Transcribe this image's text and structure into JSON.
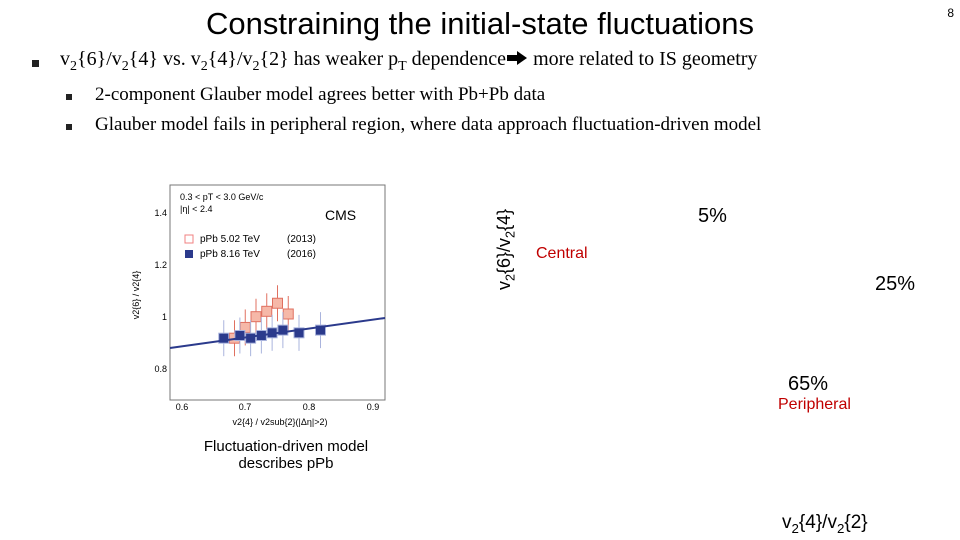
{
  "slide": {
    "title": "Constraining the initial-state fluctuations",
    "page_number": "8"
  },
  "bullets": {
    "main": {
      "prefix": "v",
      "sub1": "2",
      "p1": "{6}/v",
      "sub2": "2",
      "p2": "{4} vs. v",
      "sub3": "2",
      "p3": "{4}/v",
      "sub4": "2",
      "p4": "{2} has weaker p",
      "sub5": "T",
      "p5": " dependence",
      "p6": " more related to IS geometry"
    },
    "sub1": "2-component Glauber model agrees better with Pb+Pb data",
    "sub2": "Glauber model fails in peripheral region, where data approach fluctuation-driven model"
  },
  "cms_plot": {
    "experiment": "CMS",
    "cut1": "0.3 < pT < 3.0 GeV/c",
    "cut2": "|η| < 2.4",
    "legend": [
      {
        "label": "pPb 5.02 TeV",
        "year": "(2013)",
        "color": "#f08080"
      },
      {
        "label": "pPb 8.16 TeV",
        "year": "(2016)",
        "color": "#2b3a8c"
      }
    ],
    "ylabel": "v2{6} / v2{4}",
    "xlabel": "v2{4} / v2sub{2}(|Δη|>2)",
    "yticks": [
      "1.4",
      "1.2",
      "1",
      "0.8"
    ],
    "xticks": [
      "0.6",
      "0.7",
      "0.8",
      "0.9"
    ],
    "caption_line1": "Fluctuation-driven model",
    "caption_line2": "describes pPb"
  },
  "right_plot": {
    "ylabel": "v2{6}/v2{4}",
    "xlabel": "v2{4}/v2{2}",
    "label_5": "5%",
    "label_central": "Central",
    "label_25": "25%",
    "label_65": "65%",
    "label_peripheral": "Peripheral"
  },
  "colors": {
    "red_label": "#c00000",
    "blue_line": "#2b3a8c",
    "pink_marker": "#f08080"
  },
  "chart_data": {
    "type": "scatter",
    "xlabel": "v2{4} / v2sub{2}(|Δη|>2)",
    "ylabel": "v2{6} / v2{4}",
    "xlim": [
      0.55,
      0.95
    ],
    "ylim": [
      0.7,
      1.5
    ],
    "series": [
      {
        "name": "pPb 5.02 TeV (2013)",
        "x": [
          0.67,
          0.69,
          0.71,
          0.73,
          0.75,
          0.77
        ],
        "y": [
          0.93,
          0.97,
          1.01,
          1.03,
          1.06,
          1.02
        ]
      },
      {
        "name": "pPb 8.16 TeV (2016)",
        "x": [
          0.65,
          0.68,
          0.7,
          0.72,
          0.74,
          0.76,
          0.79,
          0.83
        ],
        "y": [
          0.93,
          0.94,
          0.93,
          0.94,
          0.95,
          0.96,
          0.95,
          0.96
        ]
      }
    ]
  }
}
